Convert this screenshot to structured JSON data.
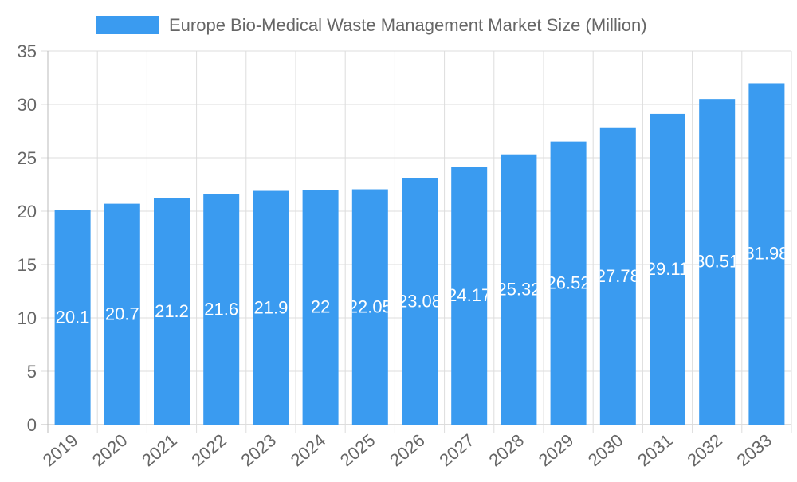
{
  "chart_data": {
    "type": "bar",
    "title": "",
    "xlabel": "",
    "ylabel": "",
    "categories": [
      "2019",
      "2020",
      "2021",
      "2022",
      "2023",
      "2024",
      "2025",
      "2026",
      "2027",
      "2028",
      "2029",
      "2030",
      "2031",
      "2032",
      "2033"
    ],
    "series": [
      {
        "name": "Europe Bio-Medical Waste Management Market Size (Million)",
        "values": [
          20.1,
          20.7,
          21.2,
          21.6,
          21.9,
          22,
          22.05,
          23.08,
          24.17,
          25.32,
          26.52,
          27.78,
          29.11,
          30.51,
          31.98
        ],
        "color": "#3a9bf0"
      }
    ],
    "ylim": [
      0,
      35
    ],
    "yticks": [
      0,
      5,
      10,
      15,
      20,
      25,
      30,
      35
    ],
    "grid": true,
    "legend": "top-center",
    "data_labels": true
  }
}
